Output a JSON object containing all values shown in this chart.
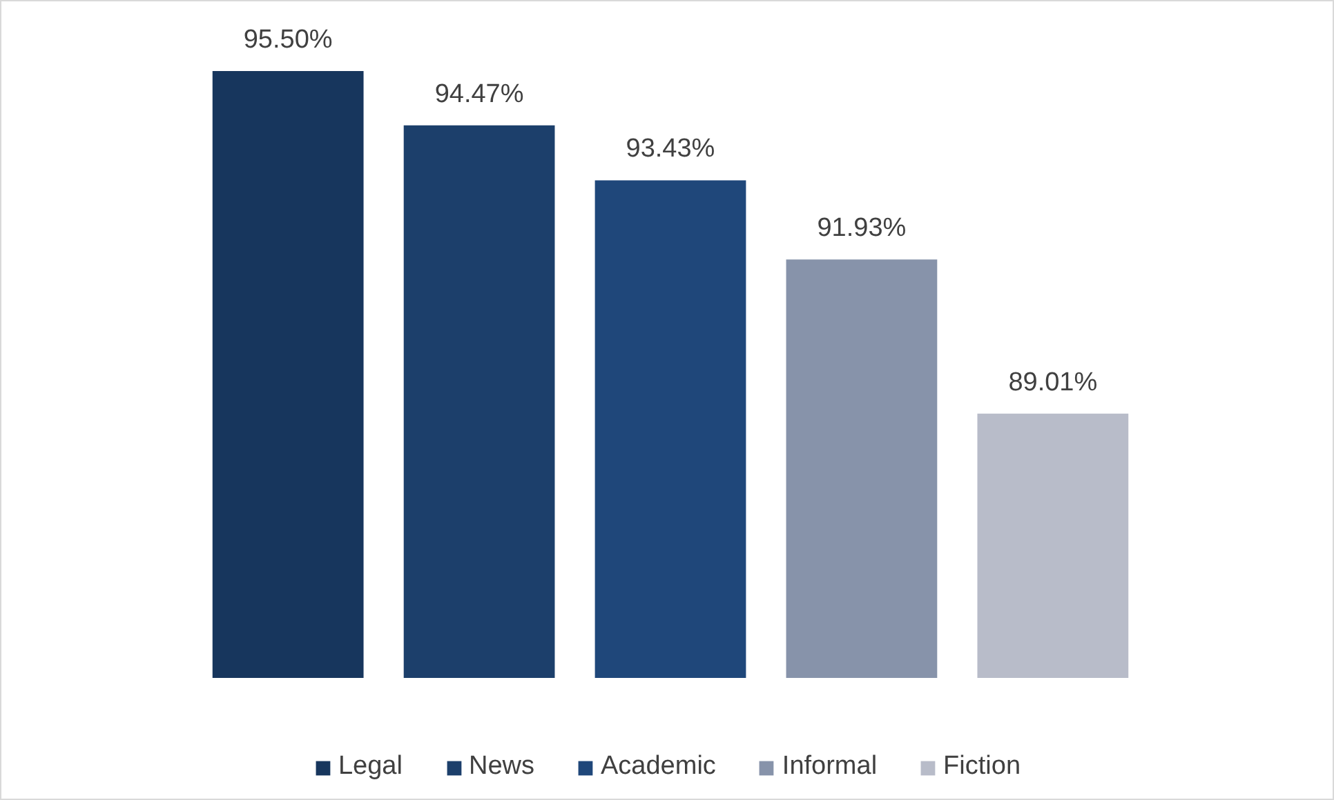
{
  "chart_data": {
    "type": "bar",
    "categories": [
      null
    ],
    "series": [
      {
        "name": "Legal",
        "color": "#17365d",
        "values": [
          95.5
        ],
        "value_labels": [
          "95.50%"
        ]
      },
      {
        "name": "News",
        "color": "#1c3f6b",
        "values": [
          94.47
        ],
        "value_labels": [
          "94.47%"
        ]
      },
      {
        "name": "Academic",
        "color": "#1f477a",
        "values": [
          93.43
        ],
        "value_labels": [
          "93.43%"
        ]
      },
      {
        "name": "Informal",
        "color": "#8793aa",
        "values": [
          91.93
        ],
        "value_labels": [
          "91.93%"
        ]
      },
      {
        "name": "Fiction",
        "color": "#b8bcc9",
        "values": [
          89.01
        ],
        "value_labels": [
          "89.01%"
        ]
      }
    ],
    "ylim": [
      84,
      95.5
    ],
    "tick_labels": false,
    "grid": false,
    "legend": "bottom"
  }
}
